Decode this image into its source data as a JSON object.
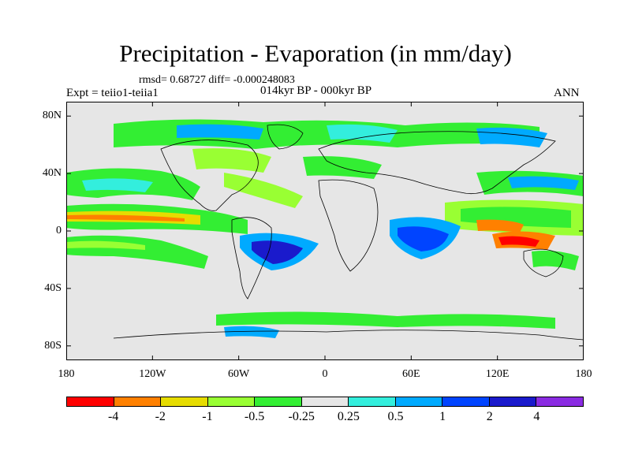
{
  "title": "Precipitation - Evaporation (in mm/day)",
  "stats": "rmsd= 0.68727 diff= -0.000248083",
  "experiment": "Expt = teiio1-teiia1",
  "period": "014kyr BP - 000kyr BP",
  "season": "ANN",
  "map": {
    "projection": "cylindrical equidistant",
    "lon_range": [
      -180,
      180
    ],
    "lat_range": [
      -90,
      90
    ],
    "lat_ticks": [
      "80N",
      "40N",
      "0",
      "40S",
      "80S"
    ],
    "lon_ticks": [
      "180",
      "120W",
      "60W",
      "0",
      "60E",
      "120E",
      "180"
    ],
    "background_color": "#e6e6e6"
  },
  "colorbar": {
    "labels": [
      "-4",
      "-2",
      "-1",
      "-0.5",
      "-0.25",
      "0.25",
      "0.5",
      "1",
      "2",
      "4"
    ],
    "colors": [
      "#ff0000",
      "#ff8000",
      "#e6dc00",
      "#99ff33",
      "#33ee33",
      "#e6e6e6",
      "#33eedd",
      "#00aaff",
      "#0044ff",
      "#1a1acc",
      "#8a2be2"
    ]
  }
}
